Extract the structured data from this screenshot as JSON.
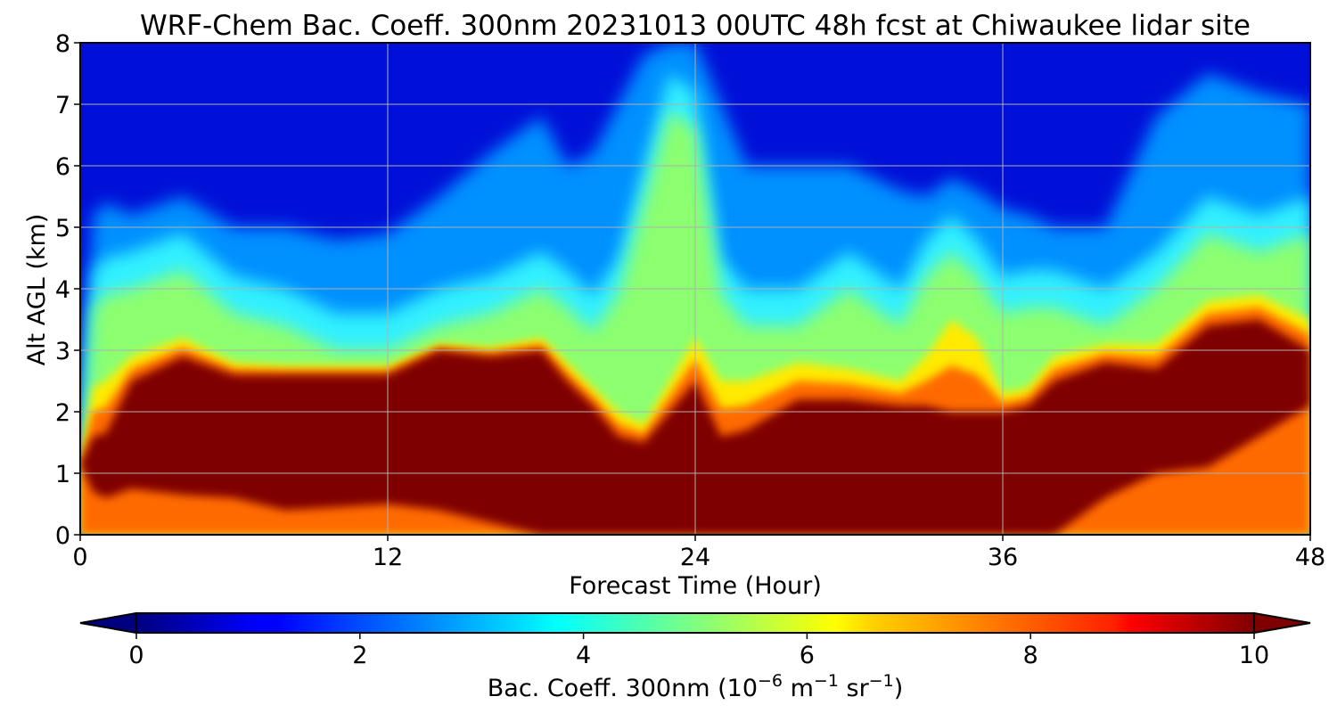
{
  "chart_data": {
    "type": "heatmap",
    "title": "WRF-Chem Bac. Coeff. 300nm  20231013 00UTC 48h fcst at Chiwaukee lidar site",
    "xlabel": "Forecast Time (Hour)",
    "ylabel": "Alt AGL (km)",
    "xlim": [
      0,
      48
    ],
    "ylim": [
      0,
      8
    ],
    "x_ticks": [
      "0",
      "12",
      "24",
      "36",
      "48"
    ],
    "y_ticks": [
      "0",
      "1",
      "2",
      "3",
      "4",
      "5",
      "6",
      "7",
      "8"
    ],
    "grid": true,
    "colormap": "jet",
    "colorbar": {
      "orientation": "horizontal",
      "range": [
        0,
        10
      ],
      "extend": "both",
      "ticks": [
        "0",
        "2",
        "4",
        "6",
        "8",
        "10"
      ],
      "label_main": "Bac. Coeff. 300nm  (10",
      "label_exp1": "−6",
      "label_mid": " m",
      "label_exp2": "−1",
      "label_mid2": " sr",
      "label_exp3": "−1",
      "label_end": ")"
    },
    "layers": {
      "x": [
        0,
        0.5,
        1,
        2,
        4,
        6,
        8,
        10,
        12,
        14,
        16,
        18,
        19,
        20,
        21,
        22,
        23,
        24,
        25,
        26,
        28,
        30,
        32,
        33,
        34,
        35,
        36,
        37,
        38,
        40,
        42,
        44,
        46,
        48
      ],
      "core_bottom": [
        1.15,
        0.7,
        0.6,
        0.75,
        0.65,
        0.6,
        0.4,
        0.45,
        0.5,
        0.4,
        0.2,
        0.0,
        0.0,
        0.0,
        0.0,
        0.0,
        0.0,
        0.0,
        0.0,
        0.0,
        0.0,
        0.0,
        0.0,
        0.0,
        0.0,
        0.0,
        0.0,
        0.0,
        0.0,
        0.6,
        1.0,
        1.1,
        1.6,
        2.1
      ],
      "core_top": [
        1.15,
        1.6,
        1.65,
        2.5,
        2.9,
        2.6,
        2.6,
        2.6,
        2.6,
        3.0,
        2.9,
        3.0,
        2.5,
        2.1,
        1.6,
        1.5,
        2.0,
        2.5,
        1.6,
        1.7,
        2.2,
        2.2,
        2.1,
        2.1,
        2.0,
        2.0,
        2.0,
        2.1,
        2.5,
        2.8,
        2.7,
        3.4,
        3.5,
        3.0
      ],
      "yellow_top": [
        1.2,
        2.4,
        2.5,
        2.9,
        3.2,
        2.8,
        2.75,
        2.75,
        2.75,
        3.1,
        3.05,
        3.2,
        2.8,
        2.4,
        2.0,
        1.8,
        2.5,
        3.2,
        2.5,
        2.5,
        2.8,
        2.7,
        2.5,
        2.9,
        3.5,
        3.2,
        2.3,
        2.4,
        2.9,
        3.1,
        3.1,
        3.8,
        3.9,
        3.5
      ],
      "cyan_top": [
        1.3,
        4.3,
        4.5,
        4.6,
        4.9,
        4.2,
        4.0,
        3.6,
        3.6,
        4.0,
        4.2,
        4.6,
        4.3,
        3.9,
        4.5,
        6.0,
        7.5,
        7.2,
        4.5,
        4.0,
        4.0,
        4.6,
        4.0,
        4.8,
        5.2,
        4.8,
        4.2,
        4.3,
        4.3,
        4.0,
        4.6,
        5.5,
        5.2,
        5.5
      ],
      "lightblue_top": [
        1.4,
        5.2,
        5.4,
        5.2,
        5.5,
        5.0,
        5.0,
        4.8,
        4.9,
        5.5,
        6.2,
        6.8,
        6.0,
        6.2,
        7.0,
        7.8,
        8.0,
        8.0,
        7.0,
        6.0,
        6.0,
        6.0,
        5.6,
        5.5,
        5.8,
        5.6,
        5.3,
        5.2,
        5.0,
        5.0,
        6.8,
        7.5,
        7.2,
        7.0
      ]
    }
  }
}
